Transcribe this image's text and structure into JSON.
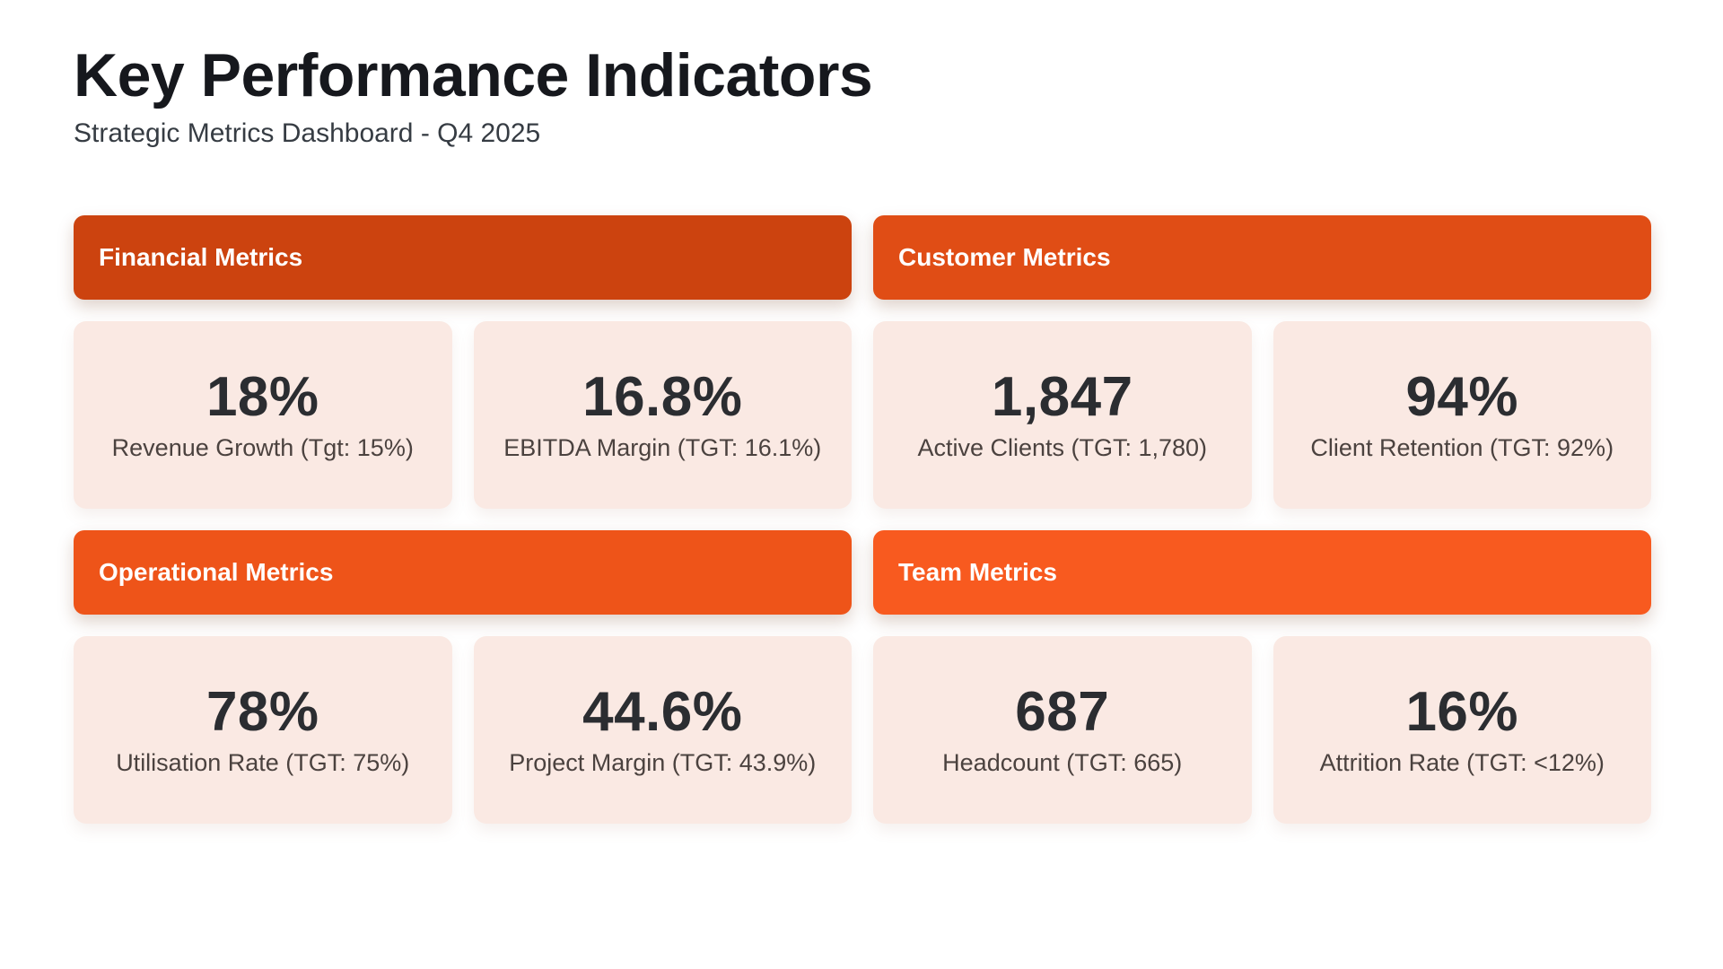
{
  "page": {
    "title": "Key Performance Indicators",
    "subtitle": "Strategic Metrics Dashboard - Q4 2025"
  },
  "colors": {
    "card_bg": "#fae9e3",
    "header_text": "#ffffff",
    "value_text": "#2b2d31",
    "label_text": "#4b423f"
  },
  "sections": [
    {
      "title": "Financial Metrics",
      "color": "#cc430f",
      "metrics": [
        {
          "value": "18%",
          "label": "Revenue Growth (Tgt: 15%)"
        },
        {
          "value": "16.8%",
          "label": "EBITDA Margin (TGT: 16.1%)"
        }
      ]
    },
    {
      "title": "Customer Metrics",
      "color": "#e04d15",
      "metrics": [
        {
          "value": "1,847",
          "label": "Active Clients (TGT: 1,780)"
        },
        {
          "value": "94%",
          "label": "Client Retention (TGT: 92%)"
        }
      ]
    },
    {
      "title": "Operational Metrics",
      "color": "#ee5419",
      "metrics": [
        {
          "value": "78%",
          "label": "Utilisation Rate (TGT: 75%)"
        },
        {
          "value": "44.6%",
          "label": "Project Margin (TGT: 43.9%)"
        }
      ]
    },
    {
      "title": "Team Metrics",
      "color": "#f85a1f",
      "metrics": [
        {
          "value": "687",
          "label": "Headcount (TGT: 665)"
        },
        {
          "value": "16%",
          "label": "Attrition Rate (TGT: <12%)"
        }
      ]
    }
  ]
}
